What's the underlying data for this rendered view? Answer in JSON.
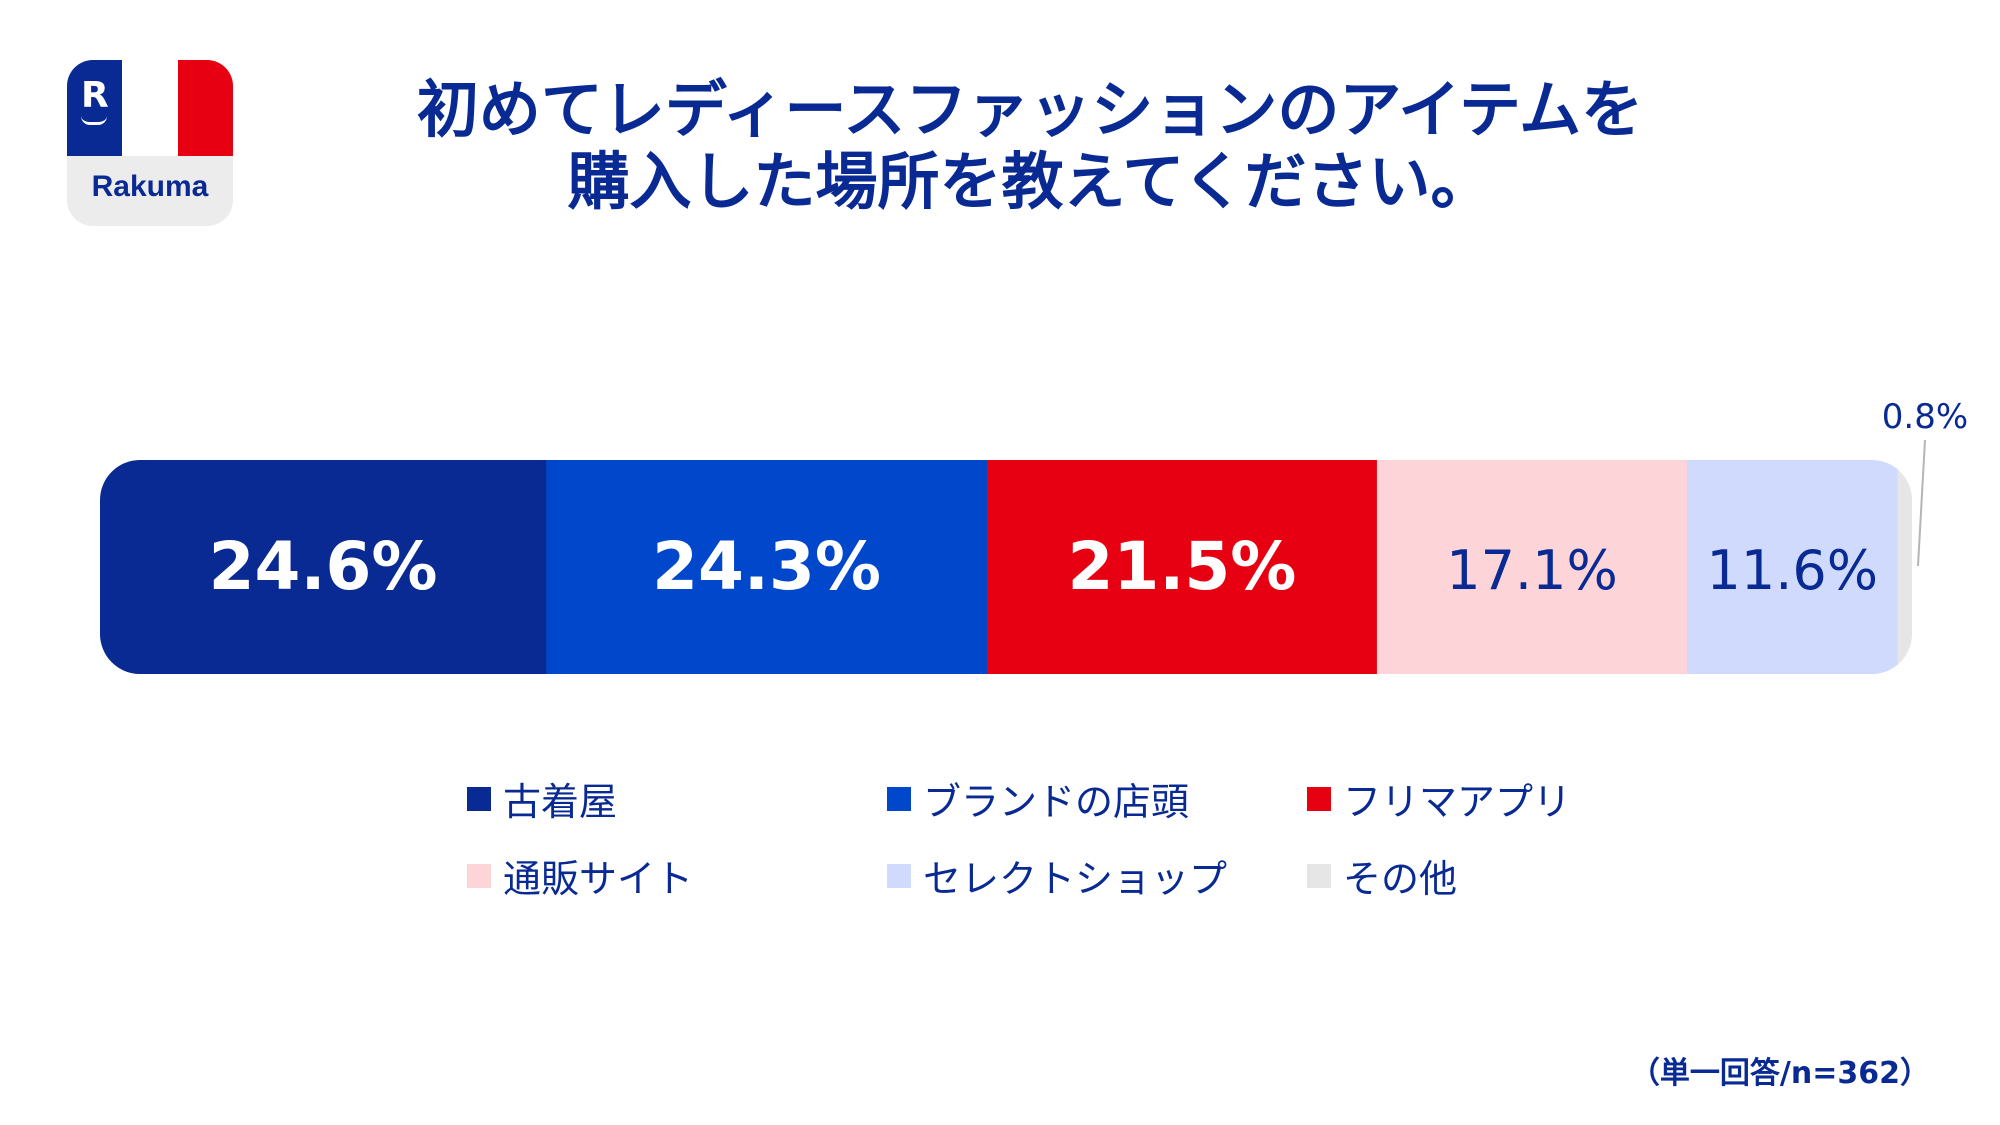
{
  "logo": {
    "wordmark": "Rakuma",
    "glyph": "R"
  },
  "title": {
    "line1": "初めてレディースファッションのアイテムを",
    "line2": "購入した場所を教えてください。"
  },
  "chart_data": {
    "type": "bar",
    "orientation": "horizontal-stacked-100",
    "unit": "%",
    "categories": [
      "古着屋",
      "ブランドの店頭",
      "フリマアプリ",
      "通販サイト",
      "セレクトショップ",
      "その他"
    ],
    "values": [
      24.6,
      24.3,
      21.5,
      17.1,
      11.6,
      0.8
    ],
    "labels": [
      "24.6%",
      "24.3%",
      "21.5%",
      "17.1%",
      "11.6%",
      "0.8%"
    ],
    "colors": [
      "#0a2a93",
      "#0047cc",
      "#e60012",
      "#fdd5d8",
      "#cfdafc",
      "#e6e6e6"
    ],
    "label_colors": [
      "#ffffff",
      "#ffffff",
      "#ffffff",
      "#0a2a93",
      "#0a2a93",
      "#0a2a93"
    ],
    "legend_position": "bottom",
    "xlim": [
      0,
      100
    ]
  },
  "footnote": "（単一回答/n=362）"
}
